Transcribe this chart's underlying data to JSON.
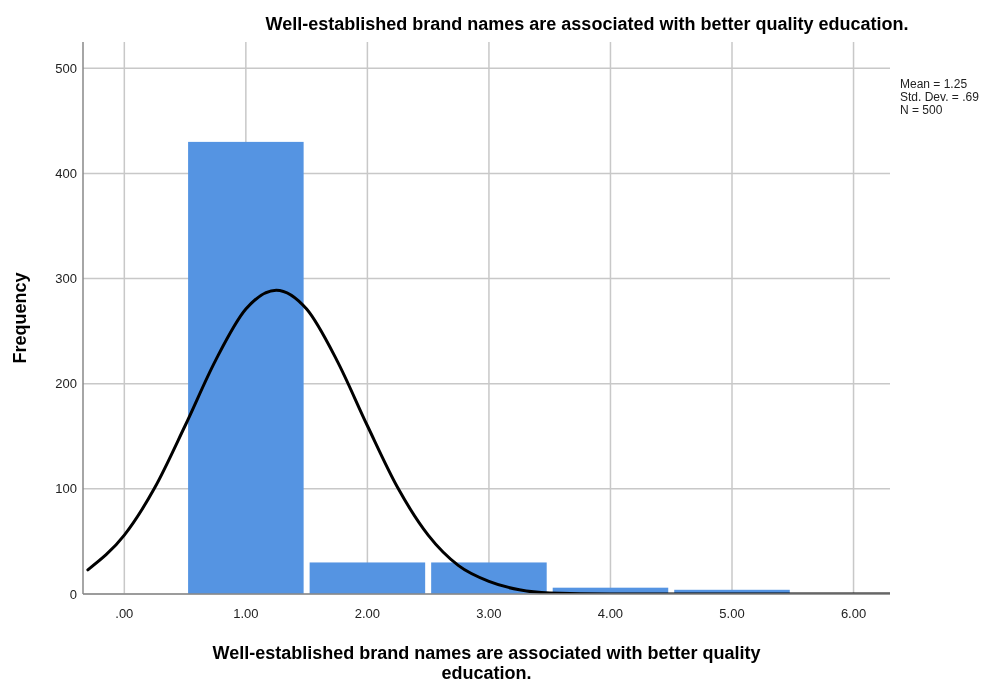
{
  "chart_data": {
    "type": "histogram",
    "title": "Well-established brand names are associated with better quality education.",
    "xlabel": "Well-established brand names are associated with better quality education.",
    "ylabel": "Frequency",
    "bins": [
      0.5,
      1.5,
      2.5,
      3.5,
      4.5,
      5.5
    ],
    "values": [
      430,
      30,
      30,
      6,
      4
    ],
    "color": "#5594e2",
    "series": [
      {
        "type": "line",
        "color": "#000000",
        "x": [
          -0.3,
          0,
          0.25,
          0.5,
          0.75,
          1,
          1.25,
          1.5,
          1.75,
          2,
          2.25,
          2.5,
          2.75,
          3,
          3.25,
          3.5,
          4,
          4.5,
          5,
          5.5,
          6,
          6.3
        ],
        "values": [
          23,
          56,
          101,
          160,
          222,
          271,
          289,
          271,
          222,
          160,
          101,
          56,
          27,
          12,
          4,
          1,
          0,
          0,
          0,
          0,
          0,
          0
        ]
      }
    ],
    "xlim": [
      -0.34,
      6.3
    ],
    "ylim": [
      0,
      525
    ],
    "xticks": [
      {
        "value": 0,
        "label": ".00"
      },
      {
        "value": 1,
        "label": "1.00"
      },
      {
        "value": 2,
        "label": "2.00"
      },
      {
        "value": 3,
        "label": "3.00"
      },
      {
        "value": 4,
        "label": "4.00"
      },
      {
        "value": 5,
        "label": "5.00"
      },
      {
        "value": 6,
        "label": "6.00"
      }
    ],
    "yticks": [
      0,
      100,
      200,
      300,
      400,
      500
    ],
    "grid": true,
    "annotations": [
      "Mean = 1.25",
      "Std. Dev. = .69",
      "N = 500"
    ]
  }
}
